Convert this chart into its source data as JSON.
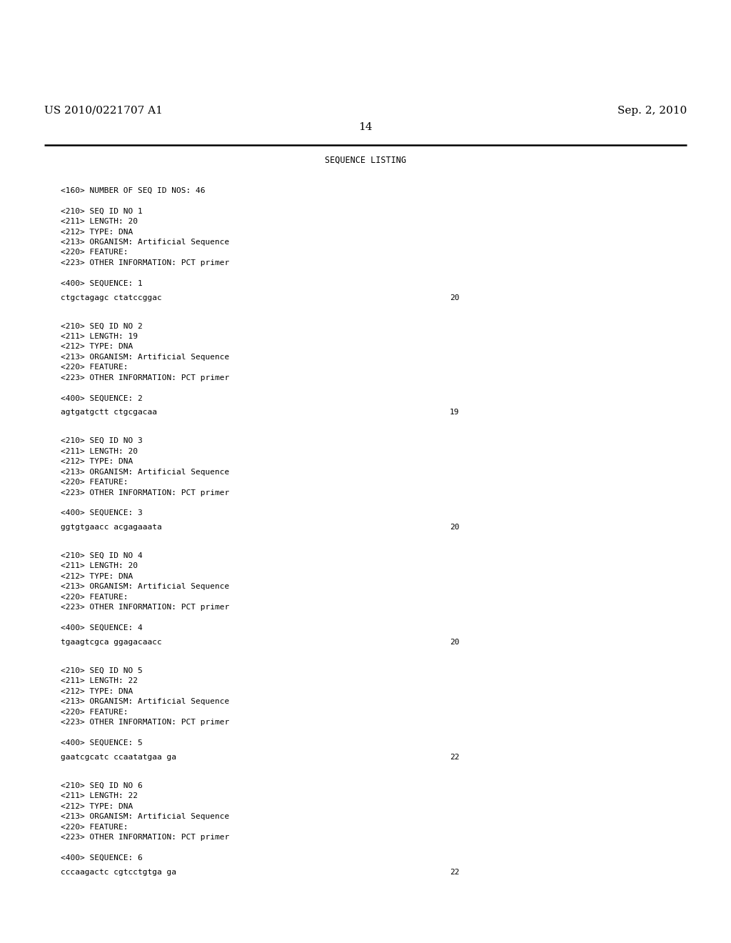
{
  "header_left": "US 2010/0221707 A1",
  "header_right": "Sep. 2, 2010",
  "page_number": "14",
  "background_color": "#ffffff",
  "text_color": "#000000",
  "title": "SEQUENCE LISTING",
  "groups": [
    {
      "meta_lines": [
        "<160> NUMBER OF SEQ ID NOS: 46"
      ],
      "has_seq": false
    },
    {
      "meta_lines": [
        "<210> SEQ ID NO 1",
        "<211> LENGTH: 20",
        "<212> TYPE: DNA",
        "<213> ORGANISM: Artificial Sequence",
        "<220> FEATURE:",
        "<223> OTHER INFORMATION: PCT primer"
      ],
      "has_seq": true,
      "seq_label": "<400> SEQUENCE: 1",
      "seq": "ctgctagagc ctatccggac",
      "num": "20"
    },
    {
      "meta_lines": [
        "<210> SEQ ID NO 2",
        "<211> LENGTH: 19",
        "<212> TYPE: DNA",
        "<213> ORGANISM: Artificial Sequence",
        "<220> FEATURE:",
        "<223> OTHER INFORMATION: PCT primer"
      ],
      "has_seq": true,
      "seq_label": "<400> SEQUENCE: 2",
      "seq": "agtgatgctt ctgcgacaa",
      "num": "19"
    },
    {
      "meta_lines": [
        "<210> SEQ ID NO 3",
        "<211> LENGTH: 20",
        "<212> TYPE: DNA",
        "<213> ORGANISM: Artificial Sequence",
        "<220> FEATURE:",
        "<223> OTHER INFORMATION: PCT primer"
      ],
      "has_seq": true,
      "seq_label": "<400> SEQUENCE: 3",
      "seq": "ggtgtgaacc acgagaaata",
      "num": "20"
    },
    {
      "meta_lines": [
        "<210> SEQ ID NO 4",
        "<211> LENGTH: 20",
        "<212> TYPE: DNA",
        "<213> ORGANISM: Artificial Sequence",
        "<220> FEATURE:",
        "<223> OTHER INFORMATION: PCT primer"
      ],
      "has_seq": true,
      "seq_label": "<400> SEQUENCE: 4",
      "seq": "tgaagtcgca ggagacaacc",
      "num": "20"
    },
    {
      "meta_lines": [
        "<210> SEQ ID NO 5",
        "<211> LENGTH: 22",
        "<212> TYPE: DNA",
        "<213> ORGANISM: Artificial Sequence",
        "<220> FEATURE:",
        "<223> OTHER INFORMATION: PCT primer"
      ],
      "has_seq": true,
      "seq_label": "<400> SEQUENCE: 5",
      "seq": "gaatcgcatc ccaatatgaa ga",
      "num": "22"
    },
    {
      "meta_lines": [
        "<210> SEQ ID NO 6",
        "<211> LENGTH: 22",
        "<212> TYPE: DNA",
        "<213> ORGANISM: Artificial Sequence",
        "<220> FEATURE:",
        "<223> OTHER INFORMATION: PCT primer"
      ],
      "has_seq": true,
      "seq_label": "<400> SEQUENCE: 6",
      "seq": "cccaagactc cgtcctgtga ga",
      "num": "22"
    }
  ]
}
